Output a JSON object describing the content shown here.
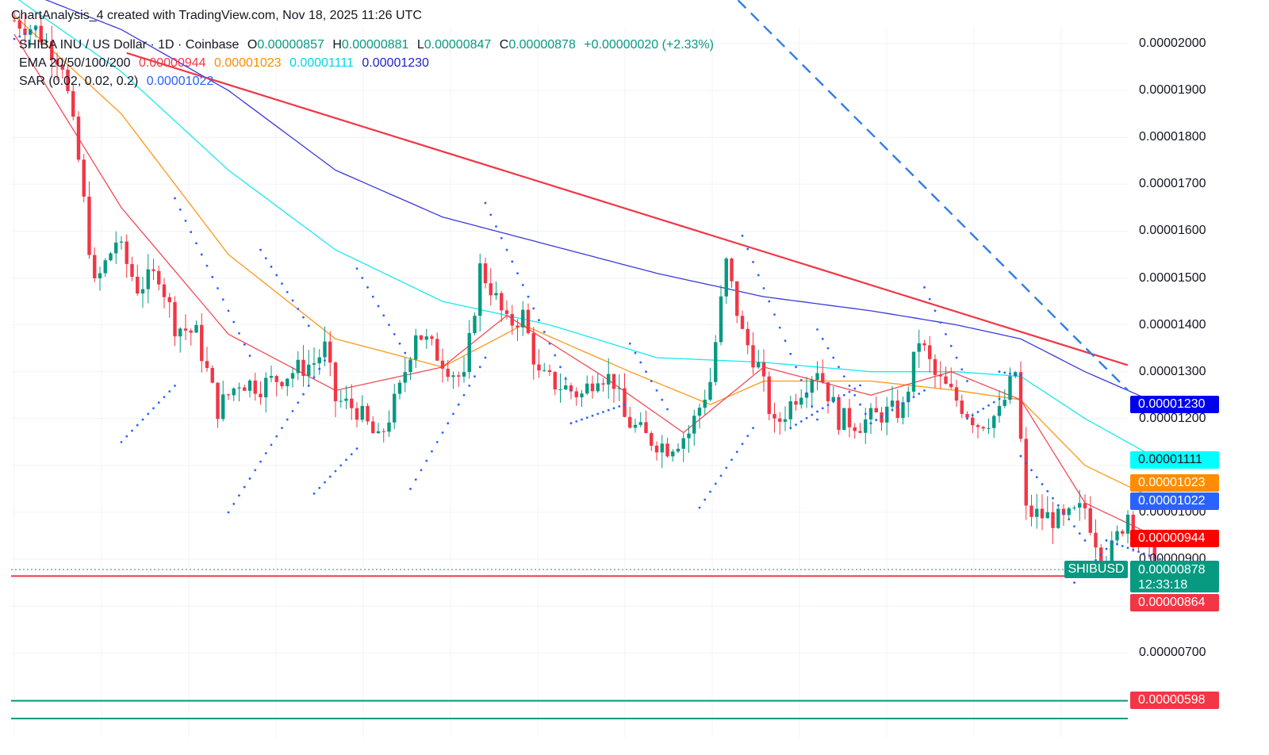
{
  "header": {
    "attribution": "ChartAnalysis_4 created with TradingView.com, Nov 18, 2025 11:26 UTC"
  },
  "legend": {
    "symbol_line": "SHIBA INU / US Dollar · 1D · Coinbase",
    "o_label": "O",
    "o_value": "0.00000857",
    "h_label": "H",
    "h_value": "0.00000881",
    "l_label": "L",
    "l_value": "0.00000847",
    "c_label": "C",
    "c_value": "0.00000878",
    "change": "+0.00000020 (+2.33%)",
    "ema_label": "EMA 20/50/100/200",
    "ema20": "0.00000944",
    "ema50": "0.00001023",
    "ema100": "0.00001111",
    "ema200": "0.00001230",
    "sar_label": "SAR (0.02, 0.02, 0.2)",
    "sar_value": "0.00001022"
  },
  "price_tags": {
    "ema200": "0.00001230",
    "ema100": "0.00001111",
    "ema50": "0.00001023",
    "sar": "0.00001022",
    "ema20": "0.00000944",
    "symbol": "SHIBUSD",
    "last_price": "0.00000878",
    "countdown": "12:33:18",
    "support_1": "0.00000864",
    "support_2": "0.00000598"
  },
  "colors": {
    "up": "#089981",
    "down": "#f23645",
    "ema20": "#f23645",
    "ema50": "#ff8c00",
    "ema100": "#00e5f0",
    "ema200": "#2323d8",
    "sar": "#2962ff",
    "trendline": "#f23645",
    "dashed": "#2f7df0",
    "support_2": "#089981"
  },
  "chart_data": {
    "type": "candlestick",
    "y_axis_ticks": [
      "0.00002000",
      "0.00001900",
      "0.00001800",
      "0.00001700",
      "0.00001600",
      "0.00001500",
      "0.00001400",
      "0.00001300",
      "0.00001200",
      "0.00001100",
      "0.00001000",
      "0.00000900",
      "0.00000700"
    ],
    "ylim": [
      5.8e-06,
      2.09e-05
    ],
    "x_range_days": [
      0,
      215
    ],
    "close_path": [
      [
        0,
        20.5
      ],
      [
        4,
        20.3
      ],
      [
        9,
        19.6
      ],
      [
        12,
        17.5
      ],
      [
        15,
        14.8
      ],
      [
        19,
        15.8
      ],
      [
        23,
        14.8
      ],
      [
        27,
        15.1
      ],
      [
        30,
        14.0
      ],
      [
        34,
        13.8
      ],
      [
        38,
        12.2
      ],
      [
        42,
        12.8
      ],
      [
        46,
        12.7
      ],
      [
        52,
        13.0
      ],
      [
        56,
        13.2
      ],
      [
        58,
        13.5
      ],
      [
        60,
        12.4
      ],
      [
        64,
        12.2
      ],
      [
        68,
        11.5
      ],
      [
        72,
        12.6
      ],
      [
        75,
        13.9
      ],
      [
        78,
        13.5
      ],
      [
        82,
        13.0
      ],
      [
        84,
        12.8
      ],
      [
        87,
        15.2
      ],
      [
        89,
        14.8
      ],
      [
        92,
        14.0
      ],
      [
        95,
        14.2
      ],
      [
        98,
        12.9
      ],
      [
        102,
        12.7
      ],
      [
        106,
        12.5
      ],
      [
        109,
        13.0
      ],
      [
        112,
        12.8
      ],
      [
        114,
        12.0
      ],
      [
        118,
        11.6
      ],
      [
        122,
        11.4
      ],
      [
        126,
        11.7
      ],
      [
        130,
        12.8
      ],
      [
        133,
        15.3
      ],
      [
        136,
        13.8
      ],
      [
        139,
        13.1
      ],
      [
        142,
        11.8
      ],
      [
        146,
        12.5
      ],
      [
        150,
        13.1
      ],
      [
        154,
        12.0
      ],
      [
        158,
        11.9
      ],
      [
        162,
        12.1
      ],
      [
        166,
        12.2
      ],
      [
        169,
        13.7
      ],
      [
        172,
        12.9
      ],
      [
        176,
        12.4
      ],
      [
        180,
        11.9
      ],
      [
        184,
        12.1
      ],
      [
        187,
        13.0
      ],
      [
        189,
        10.0
      ],
      [
        193,
        9.9
      ],
      [
        196,
        9.8
      ],
      [
        200,
        10.1
      ],
      [
        203,
        9.1
      ],
      [
        205,
        9.2
      ],
      [
        208,
        10.0
      ],
      [
        211,
        9.2
      ],
      [
        214,
        8.78
      ]
    ],
    "ema20": [
      [
        0,
        20.2
      ],
      [
        20,
        16.5
      ],
      [
        40,
        13.8
      ],
      [
        60,
        12.6
      ],
      [
        80,
        13.1
      ],
      [
        92,
        14.2
      ],
      [
        110,
        12.9
      ],
      [
        125,
        11.7
      ],
      [
        140,
        13.1
      ],
      [
        160,
        12.5
      ],
      [
        175,
        13.0
      ],
      [
        188,
        12.4
      ],
      [
        200,
        10.2
      ],
      [
        214,
        9.44
      ]
    ],
    "ema50": [
      [
        0,
        20.6
      ],
      [
        20,
        18.5
      ],
      [
        40,
        15.5
      ],
      [
        60,
        13.7
      ],
      [
        80,
        13.1
      ],
      [
        95,
        14.0
      ],
      [
        115,
        13.0
      ],
      [
        130,
        12.3
      ],
      [
        140,
        12.8
      ],
      [
        160,
        12.8
      ],
      [
        176,
        12.6
      ],
      [
        188,
        12.4
      ],
      [
        200,
        11.0
      ],
      [
        214,
        10.23
      ]
    ],
    "ema100": [
      [
        0,
        21.0
      ],
      [
        20,
        19.4
      ],
      [
        40,
        17.3
      ],
      [
        60,
        15.6
      ],
      [
        80,
        14.5
      ],
      [
        100,
        14.0
      ],
      [
        120,
        13.3
      ],
      [
        140,
        13.2
      ],
      [
        160,
        13.0
      ],
      [
        176,
        13.0
      ],
      [
        188,
        12.9
      ],
      [
        200,
        12.0
      ],
      [
        214,
        11.11
      ]
    ],
    "ema200": [
      [
        0,
        21.2
      ],
      [
        20,
        20.3
      ],
      [
        40,
        19.0
      ],
      [
        60,
        17.3
      ],
      [
        80,
        16.3
      ],
      [
        100,
        15.7
      ],
      [
        120,
        15.1
      ],
      [
        140,
        14.6
      ],
      [
        160,
        14.3
      ],
      [
        176,
        14.0
      ],
      [
        188,
        13.7
      ],
      [
        200,
        13.0
      ],
      [
        214,
        12.3
      ]
    ],
    "trendline": [
      [
        21,
        19.8
      ],
      [
        240,
        12.0
      ]
    ],
    "dashed_line": [
      [
        160,
        20.8
      ],
      [
        240,
        12.7
      ]
    ],
    "support_levels": [
      8.64,
      5.98
    ],
    "support_2_lower_band": 5.6,
    "y_unit_scale": 1e-06,
    "last_close": 8.78
  }
}
